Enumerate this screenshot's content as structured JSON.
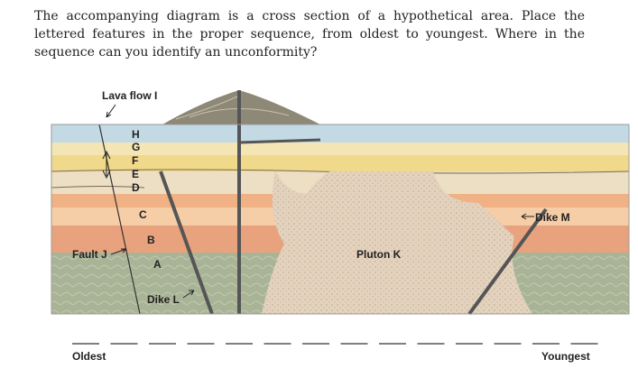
{
  "question": "The accompanying diagram is a cross section of a hypothetical area. Place the lettered features in the proper sequence, from oldest to youngest. Where in the sequence can you identify an unconformity?",
  "diagram": {
    "lava_flow": "Lava flow I",
    "letters": [
      "H",
      "G",
      "F",
      "E",
      "D",
      "C",
      "B",
      "A"
    ],
    "fault": "Fault J",
    "pluton": "Pluton K",
    "dike_m": "Dike M",
    "dike_l": "Dike L"
  },
  "sequence": {
    "start": "Oldest",
    "end": "Youngest"
  }
}
